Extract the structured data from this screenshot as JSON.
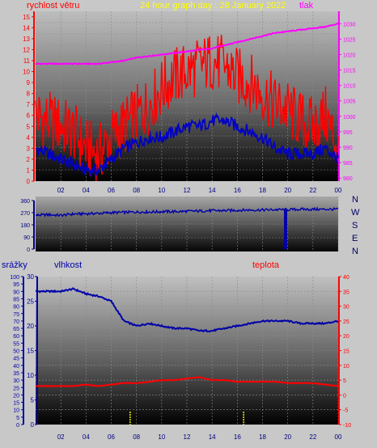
{
  "header": {
    "left_label": "rychlost větru",
    "title": "24 hour graph day : 28 January 2022",
    "right_label": "tlak"
  },
  "compass": [
    "N",
    "W",
    "S",
    "E",
    "N"
  ],
  "bottom_labels": {
    "precip": "srážky",
    "humidity": "vlhkost",
    "temperature": "teplota"
  },
  "colors": {
    "wind": "#ff0000",
    "wind_avg": "#0000c8",
    "pressure": "#ff00ff",
    "direction": "#0000aa",
    "humidity": "#0000aa",
    "temperature": "#ff0000",
    "title": "#ffff00",
    "rain_marks": "#ffff00"
  },
  "chart_data": [
    {
      "type": "line",
      "name": "wind-pressure",
      "x_ticks": [
        "02",
        "04",
        "06",
        "08",
        "10",
        "12",
        "14",
        "16",
        "18",
        "20",
        "22",
        "00"
      ],
      "y_left": {
        "ylim": [
          0,
          15.5
        ],
        "ticks": [
          0,
          1,
          2,
          3,
          4,
          5,
          6,
          7,
          8,
          9,
          10,
          11,
          12,
          13,
          14,
          15
        ]
      },
      "y_right": {
        "ylim": [
          979,
          1034
        ],
        "ticks": [
          980,
          985,
          990,
          995,
          1000,
          1005,
          1010,
          1015,
          1020,
          1025,
          1030
        ]
      },
      "x": [
        0,
        1,
        2,
        3,
        4,
        5,
        6,
        7,
        8,
        9,
        10,
        11,
        12,
        13,
        14,
        15,
        16,
        17,
        18,
        19,
        20,
        21,
        22,
        23,
        24
      ],
      "series": [
        {
          "key": "wind_gust",
          "axis": "left",
          "values": [
            6,
            5.5,
            5,
            4.5,
            3,
            2.5,
            4,
            5,
            6,
            7,
            8.5,
            9.5,
            10,
            10.5,
            11,
            10.5,
            9.5,
            9,
            8,
            7,
            6.5,
            5.5,
            5,
            6,
            3
          ]
        },
        {
          "key": "wind_avg",
          "axis": "left",
          "values": [
            3,
            2.5,
            2,
            1.5,
            1,
            1,
            2,
            3,
            3.5,
            4,
            4,
            4.5,
            5,
            5,
            5.5,
            5.5,
            5,
            4.5,
            4,
            3,
            2.5,
            2.5,
            2.5,
            3,
            2
          ]
        },
        {
          "key": "pressure",
          "axis": "right",
          "values": [
            1017,
            1017,
            1017,
            1017,
            1017,
            1017,
            1017.5,
            1018,
            1019,
            1019.5,
            1020,
            1020.5,
            1021,
            1021.5,
            1022,
            1023,
            1024,
            1025,
            1026,
            1027,
            1027.5,
            1028,
            1028.5,
            1029,
            1030
          ]
        }
      ]
    },
    {
      "type": "line",
      "name": "wind-direction",
      "x_ticks": [],
      "y": {
        "ylim": [
          0,
          360
        ],
        "ticks": [
          0,
          90,
          180,
          270,
          360
        ]
      },
      "x": [
        0,
        1,
        2,
        3,
        4,
        5,
        6,
        7,
        8,
        9,
        10,
        11,
        12,
        13,
        14,
        15,
        16,
        17,
        18,
        19,
        20,
        21,
        22,
        23,
        24
      ],
      "series": [
        {
          "key": "direction",
          "values": [
            250,
            255,
            250,
            260,
            262,
            265,
            270,
            272,
            275,
            275,
            278,
            278,
            280,
            282,
            285,
            285,
            288,
            290,
            290,
            292,
            292,
            295,
            295,
            295,
            295
          ]
        }
      ],
      "dropout": {
        "x": 19.8,
        "value": 0
      }
    },
    {
      "type": "line",
      "name": "humidity-temperature",
      "x_ticks": [
        "02",
        "04",
        "06",
        "08",
        "10",
        "12",
        "14",
        "16",
        "18",
        "20",
        "22",
        "00"
      ],
      "y_precip": {
        "ylim": [
          0,
          100
        ],
        "ticks": [
          0,
          5,
          10,
          15,
          20,
          25,
          30,
          35,
          40,
          45,
          50,
          55,
          60,
          65,
          70,
          75,
          80,
          85,
          90,
          95,
          100
        ]
      },
      "y_humidity": {
        "ylim": [
          0,
          30
        ],
        "ticks": [
          0,
          5,
          10,
          15,
          20,
          25,
          30
        ]
      },
      "y_temperature": {
        "ylim": [
          -10,
          40
        ],
        "ticks": [
          -10,
          -5,
          0,
          5,
          10,
          15,
          20,
          25,
          30,
          35,
          40
        ]
      },
      "x": [
        0,
        1,
        2,
        3,
        4,
        5,
        6,
        7,
        8,
        9,
        10,
        11,
        12,
        13,
        14,
        15,
        16,
        17,
        18,
        19,
        20,
        21,
        22,
        23,
        24
      ],
      "series": [
        {
          "key": "humidity",
          "axis": "humidity",
          "values": [
            27,
            27,
            27,
            27.5,
            26.5,
            26,
            25,
            21,
            20,
            20.5,
            20,
            19.5,
            19.5,
            19,
            19,
            19.5,
            20,
            20.5,
            21,
            21,
            21,
            20.5,
            20.5,
            20.5,
            21
          ]
        },
        {
          "key": "temperature",
          "axis": "temperature",
          "values": [
            3,
            3,
            3,
            3,
            3.5,
            3,
            3.5,
            4,
            4,
            4.5,
            5,
            5,
            5.5,
            6,
            5,
            5,
            4.5,
            4.5,
            4.5,
            4.5,
            4,
            4,
            4,
            3.5,
            3
          ]
        }
      ],
      "rain_marks": [
        7.5,
        16.5
      ]
    }
  ]
}
